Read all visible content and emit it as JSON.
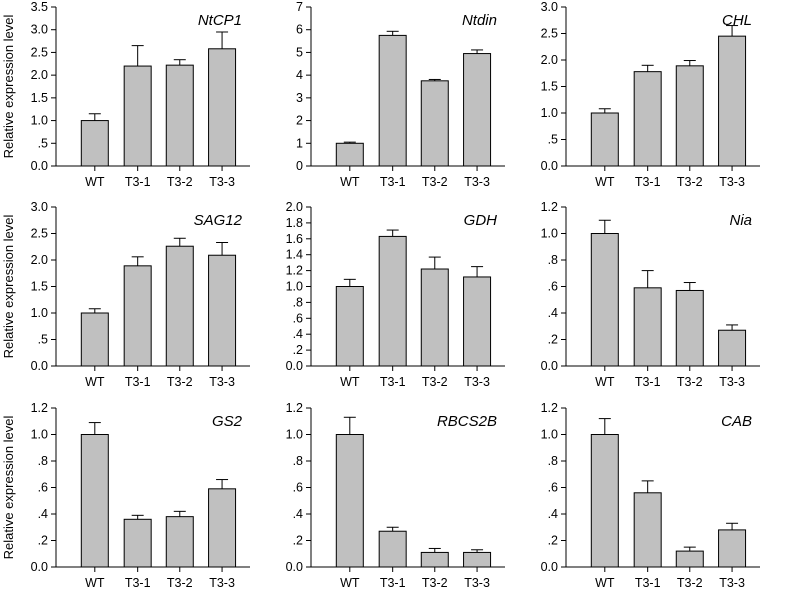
{
  "figure": {
    "ylabel": "Relative expression level",
    "bar_color": "#c0c0c0",
    "edge_color": "#000000"
  },
  "chart_data": [
    {
      "type": "bar",
      "title": "NtCP1",
      "categories": [
        "WT",
        "T3-1",
        "T3-2",
        "T3-3"
      ],
      "values": [
        1.0,
        2.2,
        2.22,
        2.58
      ],
      "errors": [
        0.15,
        0.45,
        0.12,
        0.37
      ],
      "ylim": [
        0,
        3.5
      ],
      "yticks": [
        "0.0",
        ".5",
        "1.0",
        "1.5",
        "2.0",
        "2.5",
        "3.0",
        "3.5"
      ]
    },
    {
      "type": "bar",
      "title": "Ntdin",
      "categories": [
        "WT",
        "T3-1",
        "T3-2",
        "T3-3"
      ],
      "values": [
        1.0,
        5.75,
        3.75,
        4.95
      ],
      "errors": [
        0.05,
        0.18,
        0.06,
        0.16
      ],
      "ylim": [
        0,
        7
      ],
      "yticks": [
        "0",
        "1",
        "2",
        "3",
        "4",
        "5",
        "6",
        "7"
      ]
    },
    {
      "type": "bar",
      "title": "CHL",
      "categories": [
        "WT",
        "T3-1",
        "T3-2",
        "T3-3"
      ],
      "values": [
        1.0,
        1.78,
        1.89,
        2.45
      ],
      "errors": [
        0.08,
        0.12,
        0.1,
        0.2
      ],
      "ylim": [
        0,
        3.0
      ],
      "yticks": [
        "0.0",
        ".5",
        "1.0",
        "1.5",
        "2.0",
        "2.5",
        "3.0"
      ]
    },
    {
      "type": "bar",
      "title": "SAG12",
      "categories": [
        "WT",
        "T3-1",
        "T3-2",
        "T3-3"
      ],
      "values": [
        1.0,
        1.89,
        2.26,
        2.09
      ],
      "errors": [
        0.08,
        0.17,
        0.15,
        0.24
      ],
      "ylim": [
        0,
        3.0
      ],
      "yticks": [
        "0.0",
        ".5",
        "1.0",
        "1.5",
        "2.0",
        "2.5",
        "3.0"
      ]
    },
    {
      "type": "bar",
      "title": "GDH",
      "categories": [
        "WT",
        "T3-1",
        "T3-2",
        "T3-3"
      ],
      "values": [
        1.0,
        1.63,
        1.22,
        1.12
      ],
      "errors": [
        0.09,
        0.08,
        0.15,
        0.13
      ],
      "ylim": [
        0,
        2.0
      ],
      "yticks": [
        "0.0",
        ".2",
        ".4",
        ".6",
        ".8",
        "1.0",
        "1.2",
        "1.4",
        "1.6",
        "1.8",
        "2.0"
      ]
    },
    {
      "type": "bar",
      "title": "Nia",
      "categories": [
        "WT",
        "T3-1",
        "T3-2",
        "T3-3"
      ],
      "values": [
        1.0,
        0.59,
        0.57,
        0.27
      ],
      "errors": [
        0.1,
        0.13,
        0.06,
        0.04
      ],
      "ylim": [
        0,
        1.2
      ],
      "yticks": [
        "0.0",
        ".2",
        ".4",
        ".6",
        ".8",
        "1.0",
        "1.2"
      ]
    },
    {
      "type": "bar",
      "title": "GS2",
      "categories": [
        "WT",
        "T3-1",
        "T3-2",
        "T3-3"
      ],
      "values": [
        1.0,
        0.36,
        0.38,
        0.59
      ],
      "errors": [
        0.09,
        0.03,
        0.04,
        0.07
      ],
      "ylim": [
        0,
        1.2
      ],
      "yticks": [
        "0.0",
        ".2",
        ".4",
        ".6",
        ".8",
        "1.0",
        "1.2"
      ]
    },
    {
      "type": "bar",
      "title": "RBCS2B",
      "categories": [
        "WT",
        "T3-1",
        "T3-2",
        "T3-3"
      ],
      "values": [
        1.0,
        0.27,
        0.11,
        0.11
      ],
      "errors": [
        0.13,
        0.03,
        0.03,
        0.02
      ],
      "ylim": [
        0,
        1.2
      ],
      "yticks": [
        "0.0",
        ".2",
        ".4",
        ".6",
        ".8",
        "1.0",
        "1.2"
      ]
    },
    {
      "type": "bar",
      "title": "CAB",
      "categories": [
        "WT",
        "T3-1",
        "T3-2",
        "T3-3"
      ],
      "values": [
        1.0,
        0.56,
        0.12,
        0.28
      ],
      "errors": [
        0.12,
        0.09,
        0.03,
        0.05
      ],
      "ylim": [
        0,
        1.2
      ],
      "yticks": [
        "0.0",
        ".2",
        ".4",
        ".6",
        ".8",
        "1.0",
        "1.2"
      ]
    }
  ]
}
